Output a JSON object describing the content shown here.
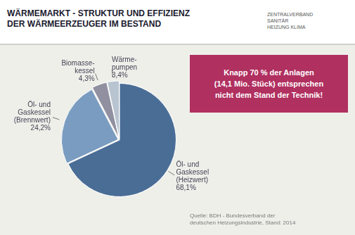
{
  "chart_data": {
    "type": "pie",
    "title": [
      "WÄRMEMARKT - STRUKTUR UND EFFIZIENZ",
      "DER WÄRMEERZEUGER IM BESTAND"
    ],
    "categories": [
      "Öl- und\nGaskessel\n(Heizwert)",
      "Öl- und\nGaskessel\n(Brennwert)",
      "Biomasse-\nkessel",
      "Wärme-\npumpen"
    ],
    "values": [
      68.1,
      24.2,
      4.3,
      3.4
    ],
    "value_labels": [
      "68,1%",
      "24,2%",
      "4,3%",
      "3,4%"
    ],
    "data_labels": true,
    "colors": [
      "#4a6d96",
      "#7a9cc0",
      "#9090a0",
      "#b8c4d0"
    ],
    "annotations": [
      "Knapp 70 % der Anlagen\n(14,1 Mio. Stück) entsprechen\nnicht dem Stand der Technik!",
      "Quelle: BDH - Bundesverband der\ndeutschen Heizungsindustrie, Stand: 2014",
      "ZENTRALVERBAND",
      "SANITÄR",
      "HEIZUNG KLIMA"
    ]
  }
}
